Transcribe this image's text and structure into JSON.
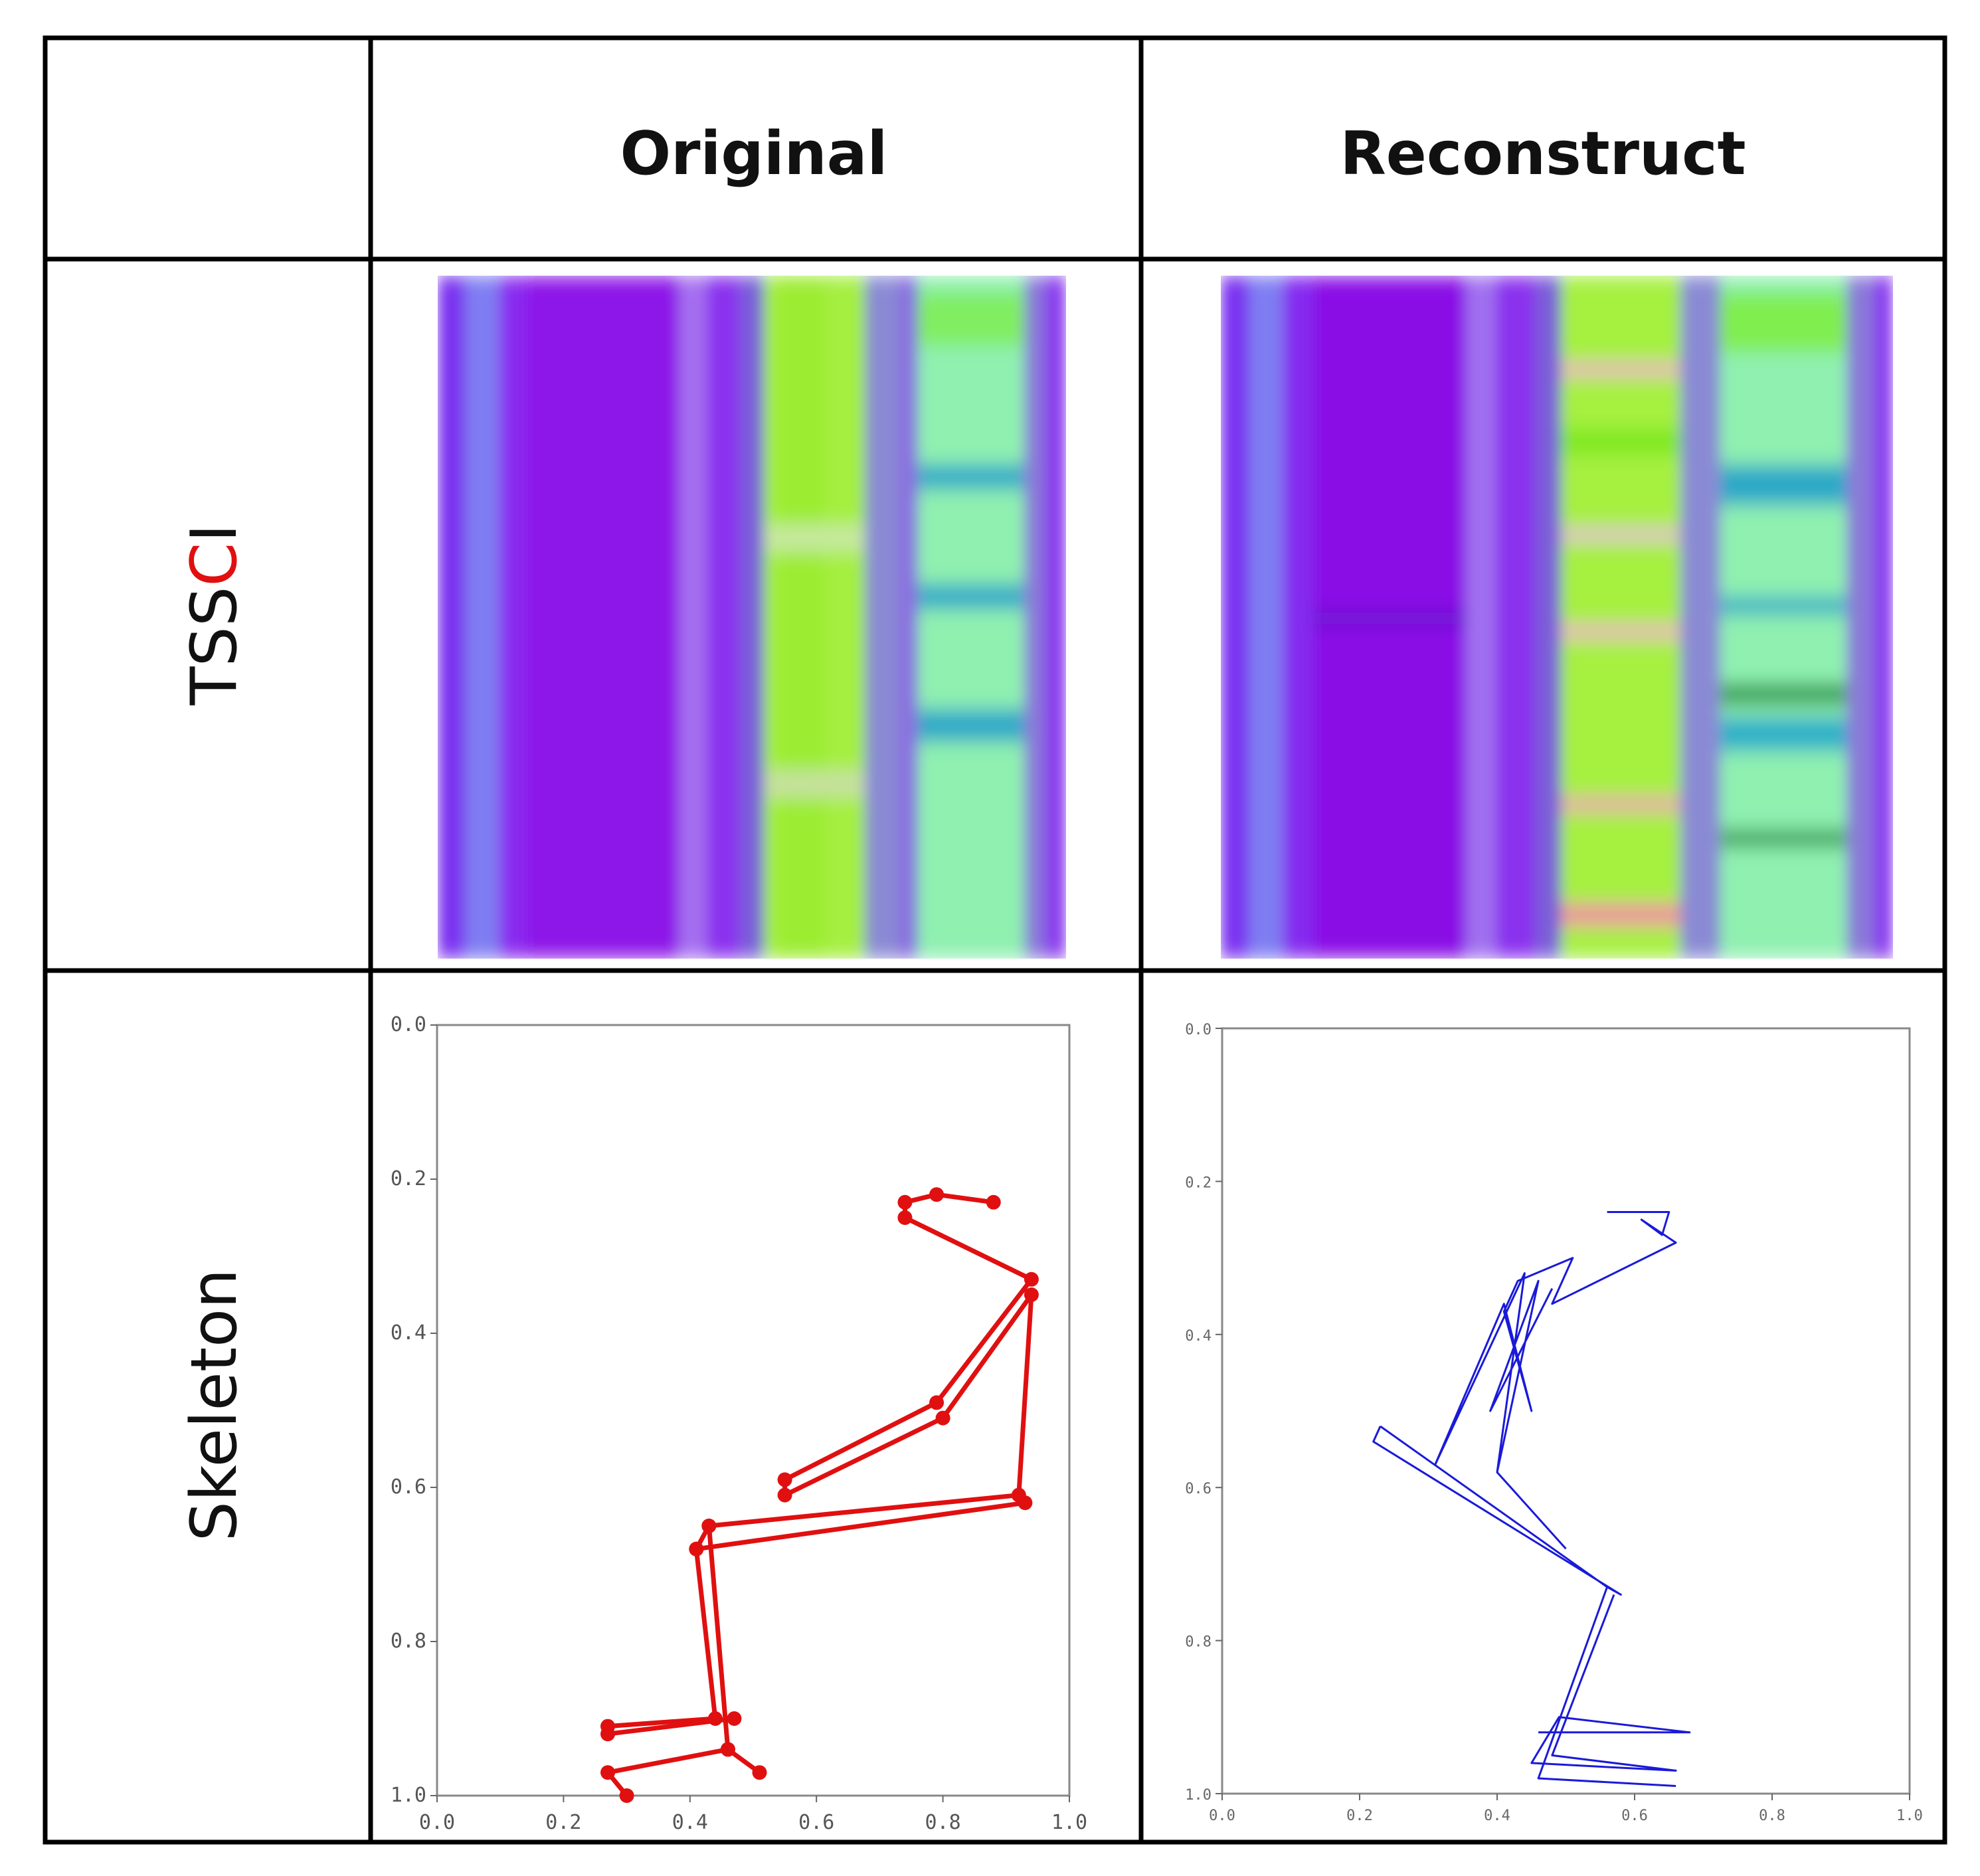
{
  "headers": {
    "col1": "Original",
    "col2": "Reconstruct"
  },
  "rows": {
    "tssci": {
      "label_black": "TSS",
      "label_red": "C",
      "label_black2": "I"
    },
    "skeleton": {
      "label": "Skeleton"
    }
  },
  "colors": {
    "original_skeleton": "#e01010",
    "reconstruct_skeleton": "#1a1ad8",
    "tssci_purple": "#8a10f0",
    "tssci_green": "#9af23a",
    "tssci_cyan": "#7ff5c8",
    "label_red": "#e01010"
  },
  "icons": [
    "tssci-original-image",
    "tssci-reconstruct-image"
  ],
  "chart_data": [
    {
      "type": "line",
      "name": "original-skeleton",
      "xlim": [
        0.0,
        1.0
      ],
      "ylim": [
        1.0,
        0.0
      ],
      "xticks": [
        "0.0",
        "0.2",
        "0.4",
        "0.6",
        "0.8",
        "1.0"
      ],
      "yticks": [
        "0.0",
        "0.2",
        "0.4",
        "0.6",
        "0.8",
        "1.0"
      ],
      "markers": true,
      "segments": [
        [
          [
            0.88,
            0.23
          ],
          [
            0.79,
            0.22
          ],
          [
            0.74,
            0.23
          ],
          [
            0.74,
            0.25
          ],
          [
            0.94,
            0.33
          ],
          [
            0.79,
            0.49
          ],
          [
            0.55,
            0.59
          ],
          [
            0.55,
            0.61
          ],
          [
            0.8,
            0.51
          ],
          [
            0.94,
            0.35
          ],
          [
            0.92,
            0.61
          ],
          [
            0.43,
            0.65
          ],
          [
            0.41,
            0.68
          ],
          [
            0.93,
            0.62
          ]
        ],
        [
          [
            0.41,
            0.68
          ],
          [
            0.44,
            0.9
          ],
          [
            0.27,
            0.91
          ],
          [
            0.27,
            0.92
          ],
          [
            0.47,
            0.9
          ]
        ],
        [
          [
            0.43,
            0.65
          ],
          [
            0.46,
            0.94
          ],
          [
            0.27,
            0.97
          ],
          [
            0.3,
            1.0
          ]
        ],
        [
          [
            0.46,
            0.94
          ],
          [
            0.51,
            0.97
          ]
        ]
      ]
    },
    {
      "type": "line",
      "name": "reconstruct-skeleton",
      "xlim": [
        0.0,
        1.0
      ],
      "ylim": [
        1.0,
        0.0
      ],
      "xticks": [
        "0.0",
        "0.2",
        "0.4",
        "0.6",
        "0.8",
        "1.0"
      ],
      "yticks": [
        "0.0",
        "0.2",
        "0.4",
        "0.6",
        "0.8",
        "1.0"
      ],
      "markers": false,
      "segments": [
        [
          [
            0.56,
            0.24
          ],
          [
            0.65,
            0.24
          ],
          [
            0.64,
            0.27
          ],
          [
            0.61,
            0.25
          ],
          [
            0.66,
            0.28
          ],
          [
            0.48,
            0.36
          ],
          [
            0.51,
            0.3
          ],
          [
            0.43,
            0.33
          ],
          [
            0.41,
            0.37
          ],
          [
            0.45,
            0.5
          ],
          [
            0.41,
            0.36
          ],
          [
            0.31,
            0.57
          ],
          [
            0.44,
            0.32
          ],
          [
            0.4,
            0.58
          ],
          [
            0.46,
            0.33
          ],
          [
            0.39,
            0.5
          ],
          [
            0.48,
            0.34
          ]
        ],
        [
          [
            0.23,
            0.52
          ],
          [
            0.56,
            0.73
          ],
          [
            0.58,
            0.74
          ],
          [
            0.22,
            0.54
          ],
          [
            0.23,
            0.52
          ]
        ],
        [
          [
            0.4,
            0.58
          ],
          [
            0.5,
            0.68
          ]
        ],
        [
          [
            0.57,
            0.74
          ],
          [
            0.48,
            0.95
          ],
          [
            0.66,
            0.97
          ],
          [
            0.45,
            0.96
          ],
          [
            0.49,
            0.9
          ],
          [
            0.68,
            0.92
          ],
          [
            0.46,
            0.92
          ]
        ],
        [
          [
            0.56,
            0.73
          ],
          [
            0.46,
            0.98
          ],
          [
            0.66,
            0.99
          ]
        ]
      ]
    }
  ]
}
